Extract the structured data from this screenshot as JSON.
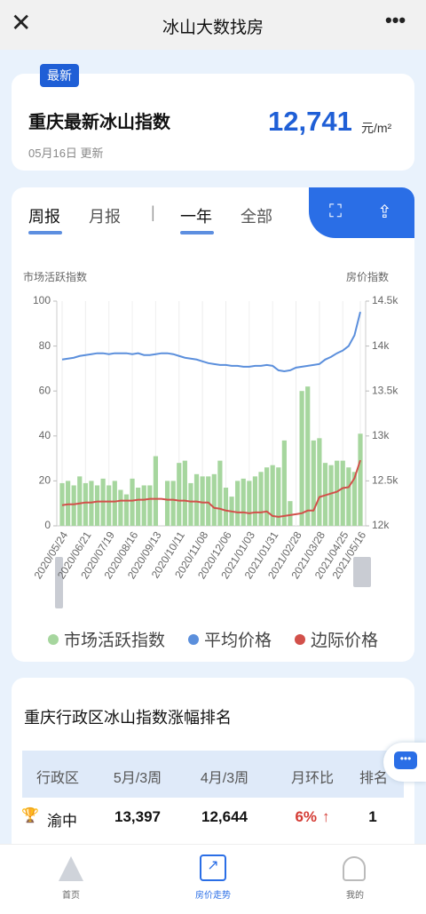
{
  "header": {
    "title": "冰山大数找房"
  },
  "summary": {
    "badge": "最新",
    "title": "重庆最新冰山指数",
    "value": "12,741",
    "unit": "元/m²",
    "updated": "05月16日 更新"
  },
  "tabs": {
    "period": [
      "周报",
      "月报"
    ],
    "range": [
      "一年",
      "全部"
    ]
  },
  "chart_data": {
    "type": "bar",
    "y_label": "市场活跃指数",
    "y2_label": "房价指数",
    "categories": [
      "2020/05/24",
      null,
      null,
      null,
      "2020/06/21",
      null,
      null,
      null,
      "2020/07/19",
      null,
      null,
      null,
      "2020/08/16",
      null,
      null,
      null,
      "2020/09/13",
      null,
      null,
      null,
      "2020/10/11",
      null,
      null,
      null,
      "2020/11/08",
      null,
      null,
      null,
      "2020/12/06",
      null,
      null,
      null,
      "2021/01/03",
      null,
      null,
      null,
      "2021/01/31",
      null,
      null,
      null,
      "2021/02/28",
      null,
      null,
      null,
      "2021/03/28",
      null,
      null,
      null,
      "2021/04/25",
      null,
      null,
      "2021/05/16"
    ],
    "ylim": [
      0,
      100
    ],
    "yticks": [
      0,
      20,
      40,
      60,
      80,
      100
    ],
    "y2lim": [
      12000,
      14500
    ],
    "y2ticks": [
      {
        "value": 12000,
        "label": "12k"
      },
      {
        "value": 12500,
        "label": "12.5k"
      },
      {
        "value": 13000,
        "label": "13k"
      },
      {
        "value": 13500,
        "label": "13.5k"
      },
      {
        "value": 14000,
        "label": "14k"
      },
      {
        "value": 14500,
        "label": "14.5k"
      }
    ],
    "legend": "bottom",
    "series": [
      {
        "name": "市场活跃指数",
        "type": "bar",
        "color": "#a6d69e",
        "values": [
          19,
          20,
          18,
          22,
          19,
          20,
          18,
          21,
          18,
          20,
          16,
          14,
          21,
          17,
          18,
          18,
          31,
          0,
          20,
          20,
          28,
          29,
          19,
          23,
          22,
          22,
          23,
          29,
          17,
          13,
          20,
          21,
          20,
          22,
          24,
          26,
          27,
          26,
          38,
          11,
          0,
          60,
          62,
          38,
          39,
          28,
          27,
          29,
          29,
          26,
          24,
          41
        ]
      },
      {
        "name": "平均价格",
        "type": "line",
        "axis": "y2",
        "color": "#5b8fdc",
        "values": [
          13850,
          13860,
          13870,
          13890,
          13900,
          13910,
          13920,
          13920,
          13910,
          13920,
          13920,
          13920,
          13910,
          13920,
          13900,
          13900,
          13910,
          13920,
          13920,
          13910,
          13890,
          13870,
          13860,
          13850,
          13830,
          13810,
          13800,
          13790,
          13790,
          13780,
          13780,
          13770,
          13770,
          13780,
          13780,
          13790,
          13780,
          13730,
          13720,
          13730,
          13760,
          13770,
          13780,
          13790,
          13800,
          13850,
          13880,
          13920,
          13950,
          14000,
          14120,
          14380
        ]
      },
      {
        "name": "边际价格",
        "type": "line",
        "axis": "y2",
        "color": "#d2504a",
        "values": [
          12230,
          12240,
          12240,
          12250,
          12260,
          12260,
          12270,
          12270,
          12270,
          12270,
          12280,
          12280,
          12280,
          12290,
          12290,
          12300,
          12300,
          12300,
          12290,
          12290,
          12280,
          12280,
          12270,
          12270,
          12260,
          12260,
          12200,
          12190,
          12170,
          12160,
          12150,
          12150,
          12140,
          12150,
          12150,
          12160,
          12110,
          12100,
          12110,
          12120,
          12130,
          12140,
          12170,
          12170,
          12320,
          12340,
          12360,
          12380,
          12420,
          12430,
          12530,
          12730
        ]
      }
    ]
  },
  "ranking": {
    "title": "重庆行政区冰山指数涨幅排名",
    "columns": [
      "行政区",
      "5月/3周",
      "4月/3周",
      "月环比",
      "排名"
    ],
    "rows": [
      [
        "渝中",
        "13,397",
        "12,644",
        "6%",
        "1"
      ]
    ]
  },
  "nav": [
    "首页",
    "房价走势",
    "我的"
  ]
}
